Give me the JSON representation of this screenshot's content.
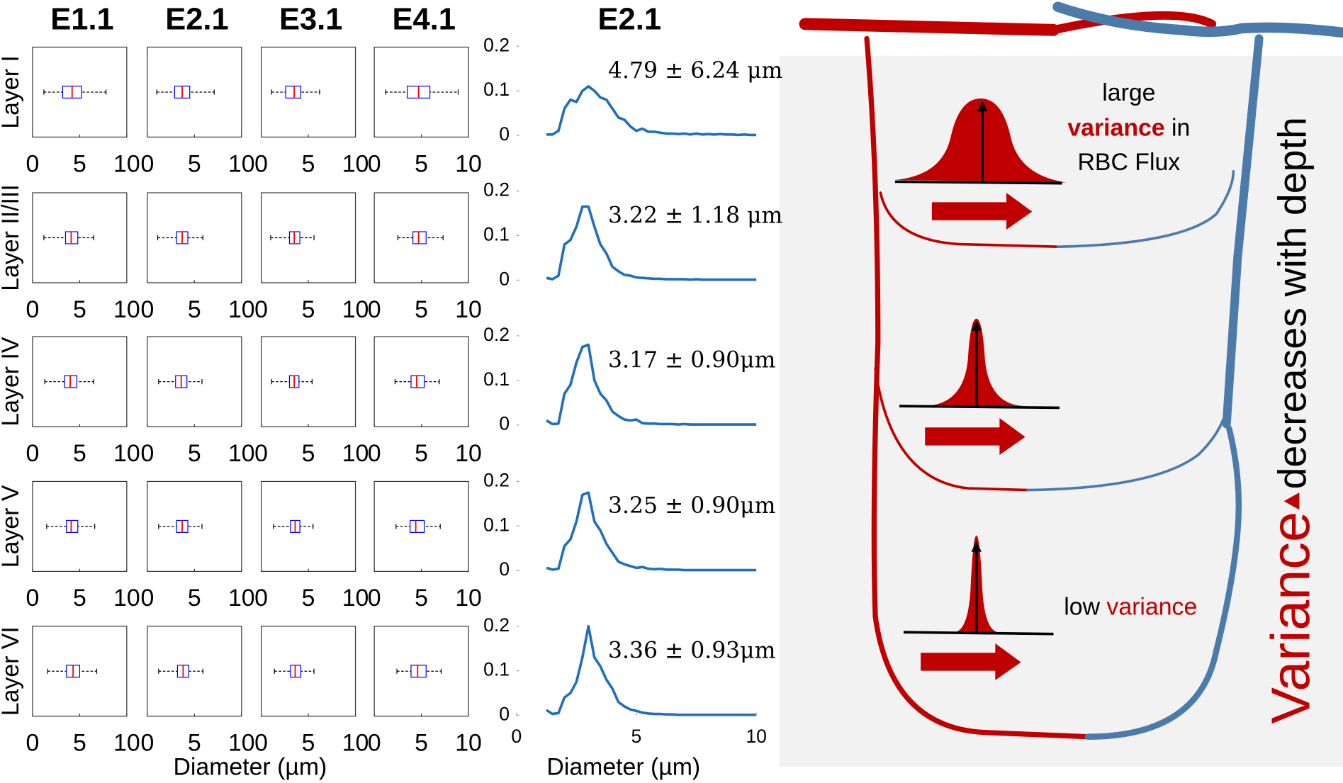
{
  "chart_data": [
    {
      "type": "box",
      "columns": [
        "E1.1",
        "E2.1",
        "E3.1",
        "E4.1"
      ],
      "xlabel": "Diameter (µm)",
      "xlim": [
        0,
        10
      ],
      "xticks": [
        0,
        5,
        10
      ],
      "box_color": "#0000ff",
      "median_color": "#ff0000",
      "rows": [
        {
          "label": "Layer I",
          "boxes": [
            {
              "low": 1.2,
              "q1": 3.2,
              "median": 4.2,
              "q3": 5.2,
              "high": 7.8
            },
            {
              "low": 1.0,
              "q1": 2.9,
              "median": 3.7,
              "q3": 4.5,
              "high": 7.1
            },
            {
              "low": 1.1,
              "q1": 2.6,
              "median": 3.5,
              "q3": 4.2,
              "high": 6.2
            },
            {
              "low": 1.2,
              "q1": 3.5,
              "median": 4.7,
              "q3": 5.9,
              "high": 8.9
            }
          ]
        },
        {
          "label": "Layer II/III",
          "boxes": [
            {
              "low": 1.2,
              "q1": 3.5,
              "median": 4.1,
              "q3": 4.8,
              "high": 6.5
            },
            {
              "low": 1.1,
              "q1": 3.1,
              "median": 3.7,
              "q3": 4.3,
              "high": 5.9
            },
            {
              "low": 1.0,
              "q1": 3.0,
              "median": 3.5,
              "q3": 4.1,
              "high": 5.6
            },
            {
              "low": 2.5,
              "q1": 4.1,
              "median": 4.7,
              "q3": 5.5,
              "high": 7.3
            }
          ]
        },
        {
          "label": "Layer IV",
          "boxes": [
            {
              "low": 1.3,
              "q1": 3.4,
              "median": 4.0,
              "q3": 4.7,
              "high": 6.5
            },
            {
              "low": 1.2,
              "q1": 3.0,
              "median": 3.6,
              "q3": 4.2,
              "high": 5.8
            },
            {
              "low": 1.1,
              "q1": 3.0,
              "median": 3.5,
              "q3": 4.0,
              "high": 5.4
            },
            {
              "low": 2.2,
              "q1": 3.9,
              "median": 4.5,
              "q3": 5.3,
              "high": 6.9
            }
          ]
        },
        {
          "label": "Layer V",
          "boxes": [
            {
              "low": 1.5,
              "q1": 3.6,
              "median": 4.1,
              "q3": 4.8,
              "high": 6.6
            },
            {
              "low": 1.2,
              "q1": 3.1,
              "median": 3.7,
              "q3": 4.3,
              "high": 5.8
            },
            {
              "low": 1.3,
              "q1": 3.1,
              "median": 3.6,
              "q3": 4.1,
              "high": 5.5
            },
            {
              "low": 2.3,
              "q1": 3.8,
              "median": 4.4,
              "q3": 5.3,
              "high": 7.0
            }
          ]
        },
        {
          "label": "Layer VI",
          "boxes": [
            {
              "low": 1.6,
              "q1": 3.6,
              "median": 4.3,
              "q3": 5.0,
              "high": 6.8
            },
            {
              "low": 1.2,
              "q1": 3.2,
              "median": 3.8,
              "q3": 4.4,
              "high": 5.9
            },
            {
              "low": 1.4,
              "q1": 3.1,
              "median": 3.6,
              "q3": 4.2,
              "high": 5.6
            },
            {
              "low": 2.4,
              "q1": 3.9,
              "median": 4.6,
              "q3": 5.5,
              "high": 7.1
            }
          ]
        }
      ]
    },
    {
      "type": "line",
      "title": "E2.1",
      "xlabel": "Diameter (µm)",
      "color": "#1f6fbf",
      "xlim": [
        0,
        10
      ],
      "xticks": [
        0,
        5,
        10
      ],
      "ylim": [
        0,
        0.2
      ],
      "yticks": [
        0,
        0.1,
        0.2
      ],
      "x": [
        1.25,
        1.5,
        1.75,
        2,
        2.25,
        2.5,
        2.75,
        3,
        3.25,
        3.5,
        3.75,
        4,
        4.25,
        4.5,
        4.75,
        5,
        5.25,
        5.5,
        5.75,
        6,
        6.25,
        6.5,
        6.75,
        7,
        7.25,
        7.5,
        7.75,
        8,
        8.25,
        8.5,
        8.75,
        9,
        9.25,
        9.5,
        9.75,
        10
      ],
      "rows": [
        {
          "annotation": "4.79 ± 6.24 μm",
          "values": [
            0.002,
            0.002,
            0.01,
            0.06,
            0.08,
            0.075,
            0.1,
            0.11,
            0.1,
            0.085,
            0.08,
            0.06,
            0.04,
            0.035,
            0.02,
            0.01,
            0.015,
            0.008,
            0.008,
            0.006,
            0.004,
            0.004,
            0.003,
            0.004,
            0.002,
            0.004,
            0.002,
            0.003,
            0.002,
            0.003,
            0.002,
            0.002,
            0.001,
            0.002,
            0.001,
            0.001
          ]
        },
        {
          "annotation": "3.22 ± 1.18 μm",
          "values": [
            0.005,
            0.002,
            0.01,
            0.08,
            0.09,
            0.12,
            0.165,
            0.165,
            0.12,
            0.08,
            0.06,
            0.03,
            0.02,
            0.012,
            0.01,
            0.006,
            0.005,
            0.004,
            0.003,
            0.003,
            0.002,
            0.002,
            0.002,
            0.002,
            0.001,
            0.002,
            0.001,
            0.001,
            0.001,
            0.001,
            0.001,
            0.001,
            0.001,
            0.001,
            0.001,
            0.001
          ]
        },
        {
          "annotation": "3.17 ± 0.90μm",
          "values": [
            0.01,
            0.002,
            0.003,
            0.07,
            0.09,
            0.14,
            0.175,
            0.18,
            0.1,
            0.07,
            0.055,
            0.03,
            0.02,
            0.012,
            0.01,
            0.012,
            0.004,
            0.003,
            0.003,
            0.002,
            0.002,
            0.002,
            0.001,
            0.002,
            0.001,
            0.001,
            0.001,
            0.001,
            0.001,
            0.001,
            0.001,
            0.001,
            0.001,
            0.001,
            0.001,
            0.001
          ]
        },
        {
          "annotation": "3.25 ± 0.90μm",
          "values": [
            0.006,
            0.002,
            0.004,
            0.055,
            0.07,
            0.11,
            0.17,
            0.175,
            0.11,
            0.09,
            0.06,
            0.04,
            0.02,
            0.014,
            0.01,
            0.006,
            0.008,
            0.004,
            0.003,
            0.004,
            0.002,
            0.002,
            0.002,
            0.001,
            0.001,
            0.001,
            0.001,
            0.001,
            0.001,
            0.001,
            0.001,
            0.001,
            0.001,
            0.001,
            0.001,
            0.001
          ]
        },
        {
          "annotation": "3.36 ± 0.93μm",
          "values": [
            0.012,
            0.003,
            0.005,
            0.04,
            0.05,
            0.075,
            0.13,
            0.2,
            0.13,
            0.11,
            0.08,
            0.06,
            0.03,
            0.02,
            0.013,
            0.01,
            0.006,
            0.004,
            0.003,
            0.003,
            0.002,
            0.002,
            0.001,
            0.001,
            0.001,
            0.001,
            0.001,
            0.001,
            0.001,
            0.001,
            0.001,
            0.001,
            0.001,
            0.001,
            0.001,
            0.001
          ]
        }
      ]
    }
  ],
  "diagram": {
    "top_note": [
      "large",
      "variance",
      "in",
      "RBC Flux"
    ],
    "bottom_note": [
      "low",
      "variance"
    ],
    "side": [
      "Variance",
      "decreases with depth"
    ]
  }
}
